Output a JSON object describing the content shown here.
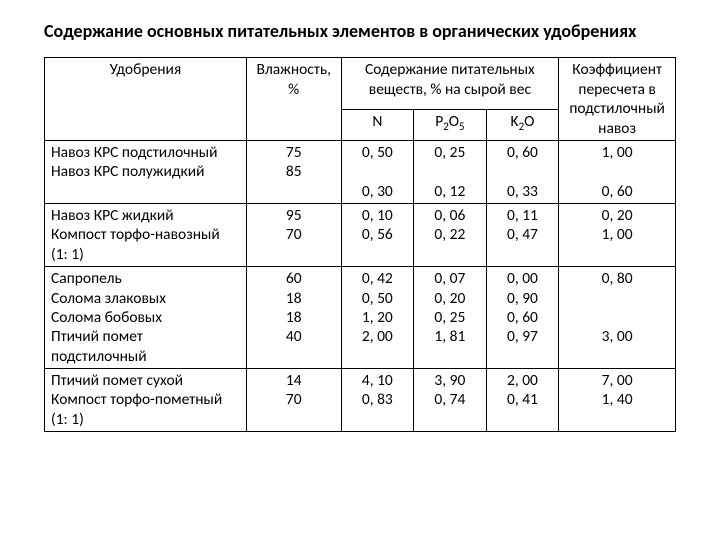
{
  "title": "Содержание основных питательных элементов в органических удобрениях",
  "table": {
    "columns": [
      "Удобрения",
      "Влажность, %",
      "Содержание питательных веществ, % на сырой вес",
      "Коэффициент пересчета в подстилочный навоз"
    ],
    "subcolumns": {
      "N": "N",
      "P": "P₂O₅",
      "K": "K₂O"
    },
    "groups": [
      {
        "rows": [
          {
            "label": "Навоз КРС подстилочный",
            "humidity": "75",
            "N": "0, 50",
            "P": "0, 25",
            "K": "0, 60",
            "coef": "1, 00"
          },
          {
            "label": "Навоз КРС полужидкий",
            "humidity": "85",
            "N": "0, 30",
            "P": "0, 12",
            "K": "0, 33",
            "coef": "0, 60"
          }
        ]
      },
      {
        "rows": [
          {
            "label": "Навоз КРС жидкий",
            "humidity": "95",
            "N": "0, 10",
            "P": "0, 06",
            "K": "0, 11",
            "coef": "0, 20"
          },
          {
            "label": "Компост торфо-навозный (1: 1)",
            "humidity": "70",
            "N": "0, 56",
            "P": "0, 22",
            "K": "0, 47",
            "coef": "1, 00"
          }
        ]
      },
      {
        "rows": [
          {
            "label": "Сапропель",
            "humidity": "60",
            "N": "0, 42",
            "P": "0, 07",
            "K": "0, 00",
            "coef": "0, 80"
          },
          {
            "label": "Солома злаковых",
            "humidity": "18",
            "N": "0, 50",
            "P": "0, 20",
            "K": "0, 90",
            "coef": ""
          },
          {
            "label": "Солома бобовых",
            "humidity": "18",
            "N": "1, 20",
            "P": "0, 25",
            "K": "0, 60",
            "coef": ""
          },
          {
            "label": "Птичий помет подстилочный",
            "humidity": "40",
            "N": "2, 00",
            "P": "1, 81",
            "K": "0, 97",
            "coef": "3, 00"
          }
        ]
      },
      {
        "rows": [
          {
            "label": "Птичий помет сухой",
            "humidity": "14",
            "N": "4, 10",
            "P": "3, 90",
            "K": "2, 00",
            "coef": "7, 00"
          },
          {
            "label": "Компост торфо-пометный (1: 1)",
            "humidity": "70",
            "N": "0, 83",
            "P": "0, 74",
            "K": "0, 41",
            "coef": "1, 40"
          }
        ]
      }
    ],
    "colors": {
      "border": "#000000",
      "background": "#ffffff",
      "text": "#000000"
    },
    "fontsize_pt": 12
  }
}
